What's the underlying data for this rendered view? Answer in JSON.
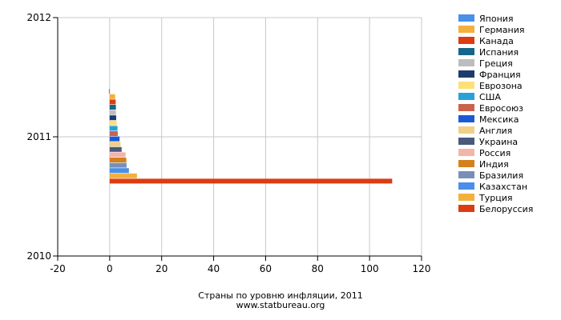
{
  "chart_data": {
    "type": "bar",
    "orientation": "horizontal",
    "title": "Страны по уровню инфляции, 2011",
    "subtitle": "www.statbureau.org",
    "xlim": [
      -20,
      120
    ],
    "x_ticks": [
      "-20",
      "0",
      "20",
      "40",
      "60",
      "80",
      "100",
      "120"
    ],
    "y_ticks": [
      "2012",
      "2011",
      "2010"
    ],
    "category": "2011",
    "grid": true,
    "legend_position": "right",
    "series": [
      {
        "name": "Япония",
        "value": -0.3,
        "color": "#4a8fe8"
      },
      {
        "name": "Германия",
        "value": 2.1,
        "color": "#f4b03c"
      },
      {
        "name": "Канада",
        "value": 2.3,
        "color": "#dc3c12"
      },
      {
        "name": "Испания",
        "value": 2.4,
        "color": "#16668a"
      },
      {
        "name": "Греция",
        "value": 2.4,
        "color": "#bdbdbd"
      },
      {
        "name": "Франция",
        "value": 2.5,
        "color": "#1e3a6e"
      },
      {
        "name": "Еврозона",
        "value": 2.7,
        "color": "#fce07a"
      },
      {
        "name": "США",
        "value": 3.0,
        "color": "#2aa0d8"
      },
      {
        "name": "Евросоюз",
        "value": 3.1,
        "color": "#c8644c"
      },
      {
        "name": "Мексика",
        "value": 3.8,
        "color": "#1a5ad6"
      },
      {
        "name": "Англия",
        "value": 4.2,
        "color": "#f0d088"
      },
      {
        "name": "Украина",
        "value": 4.6,
        "color": "#4a5a7a"
      },
      {
        "name": "Россия",
        "value": 6.1,
        "color": "#f4b4a8"
      },
      {
        "name": "Индия",
        "value": 6.4,
        "color": "#d4801c"
      },
      {
        "name": "Бразилия",
        "value": 6.5,
        "color": "#7890b8"
      },
      {
        "name": "Казахстан",
        "value": 7.4,
        "color": "#4a8fe8"
      },
      {
        "name": "Турция",
        "value": 10.5,
        "color": "#f4b03c"
      },
      {
        "name": "Белоруссия",
        "value": 108.7,
        "color": "#dc3c12"
      }
    ]
  }
}
